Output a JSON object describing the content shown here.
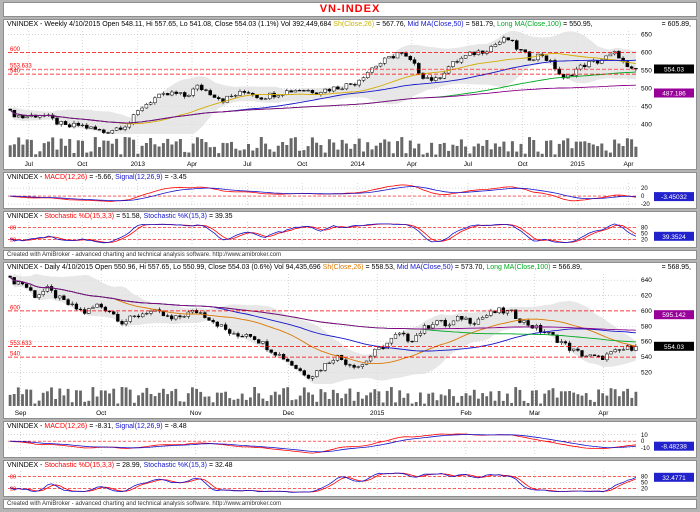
{
  "title": "VN-INDEX",
  "credit": "Created with AmiBroker - advanced charting and technical analysis software.  http://www.amibroker.com",
  "weekly": {
    "price_header": {
      "segments": [
        {
          "t": "VNINDEX - Weekly 4/10/2015 Open 548.11, Hi 557.65, Lo 541.08, Close 554.03 (1.1%) Vol 392,449,684 ",
          "c": "#000000"
        },
        {
          "t": "Sh(Close,26)",
          "c": "#c8b400"
        },
        {
          "t": " = 567.76, ",
          "c": "#000000"
        },
        {
          "t": "Mid MA(Close,50)",
          "c": "#1414cc"
        },
        {
          "t": " = 581.79, ",
          "c": "#000000"
        },
        {
          "t": "Long MA(Close,100)",
          "c": "#00aa22"
        },
        {
          "t": " = 550.95,",
          "c": "#000000"
        },
        {
          "t": "= 605.89,",
          "c": "#000000",
          "right": true
        }
      ]
    },
    "macd_header": {
      "segments": [
        {
          "t": "VNINDEX - ",
          "c": "#000000"
        },
        {
          "t": "MACD(12,26)",
          "c": "#ff0000"
        },
        {
          "t": " = -5.66, ",
          "c": "#000000"
        },
        {
          "t": "Signal(12,26,9)",
          "c": "#1414cc"
        },
        {
          "t": " = -3.45",
          "c": "#000000"
        }
      ]
    },
    "stoch_header": {
      "segments": [
        {
          "t": "VNINDEX - ",
          "c": "#000000"
        },
        {
          "t": "Stochastic %D(15,3,3)",
          "c": "#ff0000"
        },
        {
          "t": " = 51.58, ",
          "c": "#000000"
        },
        {
          "t": "Stochastic %K(15,3)",
          "c": "#1414cc"
        },
        {
          "t": " = 39.35",
          "c": "#000000"
        }
      ]
    }
  },
  "daily": {
    "price_header": {
      "segments": [
        {
          "t": "VNINDEX - Daily 4/10/2015 Open 550.96, Hi 557.65, Lo 550.99, Close 554.03 (0.6%) Vol 94,435,696 ",
          "c": "#000000"
        },
        {
          "t": "Sh(Close,26)",
          "c": "#dd7700"
        },
        {
          "t": " = 558.53, ",
          "c": "#000000"
        },
        {
          "t": "Mid MA(Close,50)",
          "c": "#1414cc"
        },
        {
          "t": " = 573.70, ",
          "c": "#000000"
        },
        {
          "t": "Long MA(Close,100)",
          "c": "#00aa22"
        },
        {
          "t": " = 566.89,",
          "c": "#000000"
        },
        {
          "t": "= 568.95,",
          "c": "#000000",
          "right": true
        }
      ]
    },
    "macd_header": {
      "segments": [
        {
          "t": "VNINDEX - ",
          "c": "#000000"
        },
        {
          "t": "MACD(12,26)",
          "c": "#ff0000"
        },
        {
          "t": " = -8.31, ",
          "c": "#000000"
        },
        {
          "t": "Signal(12,26,9)",
          "c": "#1414cc"
        },
        {
          "t": " = -8.48",
          "c": "#000000"
        }
      ]
    },
    "stoch_header": {
      "segments": [
        {
          "t": "VNINDEX - ",
          "c": "#000000"
        },
        {
          "t": "Stochastic %D(15,3,3)",
          "c": "#ff0000"
        },
        {
          "t": " = 28.99, ",
          "c": "#000000"
        },
        {
          "t": "Stochastic %K(15,3)",
          "c": "#1414cc"
        },
        {
          "t": " = 32.48",
          "c": "#000000"
        }
      ]
    }
  },
  "chart_data": [
    {
      "id": "weekly-price",
      "type": "candlestick",
      "timeframe": "Weekly",
      "as_of": "4/10/2015",
      "last": {
        "open": 548.11,
        "high": 557.65,
        "low": 541.08,
        "close": 554.03,
        "change_pct": "1.1%",
        "volume": "392,449,684"
      },
      "indicators": {
        "sh_close_26": 567.76,
        "mid_ma_close_50": 581.79,
        "long_ma_close_100": 550.95,
        "unlabeled": 605.89
      },
      "ylim": [
        373,
        660
      ],
      "yticks": [
        650,
        600,
        550,
        500,
        450,
        400
      ],
      "num_bars": 148,
      "close_trend": [
        [
          0,
          432
        ],
        [
          0.02,
          420
        ],
        [
          0.05,
          428
        ],
        [
          0.07,
          410
        ],
        [
          0.09,
          392
        ],
        [
          0.11,
          398
        ],
        [
          0.13,
          388
        ],
        [
          0.15,
          378
        ],
        [
          0.17,
          390
        ],
        [
          0.19,
          402
        ],
        [
          0.21,
          448
        ],
        [
          0.23,
          472
        ],
        [
          0.26,
          486
        ],
        [
          0.28,
          478
        ],
        [
          0.3,
          505
        ],
        [
          0.32,
          488
        ],
        [
          0.34,
          468
        ],
        [
          0.36,
          482
        ],
        [
          0.38,
          492
        ],
        [
          0.4,
          475
        ],
        [
          0.43,
          488
        ],
        [
          0.46,
          498
        ],
        [
          0.49,
          492
        ],
        [
          0.52,
          502
        ],
        [
          0.55,
          515
        ],
        [
          0.58,
          560
        ],
        [
          0.61,
          588
        ],
        [
          0.62,
          601
        ],
        [
          0.64,
          575
        ],
        [
          0.66,
          535
        ],
        [
          0.68,
          522
        ],
        [
          0.7,
          560
        ],
        [
          0.72,
          582
        ],
        [
          0.74,
          598
        ],
        [
          0.76,
          608
        ],
        [
          0.78,
          628
        ],
        [
          0.795,
          638
        ],
        [
          0.81,
          612
        ],
        [
          0.83,
          585
        ],
        [
          0.85,
          595
        ],
        [
          0.87,
          560
        ],
        [
          0.885,
          522
        ],
        [
          0.9,
          548
        ],
        [
          0.92,
          568
        ],
        [
          0.94,
          576
        ],
        [
          0.96,
          592
        ],
        [
          0.97,
          600
        ],
        [
          0.98,
          570
        ],
        [
          0.99,
          546
        ],
        [
          1,
          554.03
        ]
      ],
      "ma": [
        {
          "name": "Sh(Close,26)",
          "window": 26,
          "color": "#d4aa00"
        },
        {
          "name": "Mid MA(Close,50)",
          "window": 50,
          "color": "#1414cc"
        },
        {
          "name": "Long MA(Close,100)",
          "window": 100,
          "color": "#00aa22"
        },
        {
          "name": "MA(Close,200)",
          "window": 200,
          "color": "#8a008a"
        }
      ],
      "hlines": [
        {
          "v": 600,
          "label": "600"
        },
        {
          "v": 553.633,
          "label": "553.633"
        },
        {
          "v": 540,
          "label": "540"
        }
      ],
      "xlabels": [
        {
          "t": "Jul",
          "f": 0.033
        },
        {
          "t": "Oct",
          "f": 0.118
        },
        {
          "t": "2013",
          "f": 0.206
        },
        {
          "t": "Apr",
          "f": 0.292
        },
        {
          "t": "Jul",
          "f": 0.38
        },
        {
          "t": "Oct",
          "f": 0.467
        },
        {
          "t": "2014",
          "f": 0.555
        },
        {
          "t": "Apr",
          "f": 0.641
        },
        {
          "t": "Jul",
          "f": 0.73
        },
        {
          "t": "Oct",
          "f": 0.817
        },
        {
          "t": "2015",
          "f": 0.904
        },
        {
          "t": "Apr",
          "f": 0.985
        }
      ],
      "boxes": [
        {
          "label": "554.03",
          "bg": "#000000",
          "v": 554.03
        },
        {
          "label": "487.186",
          "bg": "#990099",
          "v": 487.186
        }
      ],
      "geom": {
        "plot_right": 634,
        "price_bottom": 105,
        "vol_bottom": 128,
        "xlabel_y": 137
      }
    },
    {
      "id": "weekly-macd",
      "type": "line",
      "source": "weekly-price",
      "derive": "macd",
      "params": [
        12,
        26,
        9
      ],
      "last": {
        "macd": -5.66,
        "signal": -3.45
      },
      "yticks": [
        20,
        0,
        -20
      ],
      "hlines": [
        {
          "v": 0
        }
      ],
      "vgrid": [
        0.033,
        0.118,
        0.206,
        0.292,
        0.38,
        0.467,
        0.555,
        0.641,
        0.73,
        0.817,
        0.904,
        0.985
      ],
      "box": {
        "label": "-3.45032",
        "bg": "#2222cc"
      },
      "geom": {
        "plot_right": 634
      }
    },
    {
      "id": "weekly-stoch",
      "type": "line",
      "source": "weekly-price",
      "derive": "stochastic",
      "params": [
        15,
        3,
        3
      ],
      "last": {
        "percent_d": 51.58,
        "percent_k": 39.35
      },
      "ylim": [
        -8,
        108
      ],
      "yticks": [
        80,
        50,
        20
      ],
      "hlines": [
        {
          "v": 80,
          "label": "80"
        },
        {
          "v": 20,
          "label": "20"
        }
      ],
      "vgrid": [
        0.033,
        0.118,
        0.206,
        0.292,
        0.38,
        0.467,
        0.555,
        0.641,
        0.73,
        0.817,
        0.904,
        0.985
      ],
      "box": {
        "label": "39.3524",
        "bg": "#2222cc"
      },
      "geom": {
        "plot_right": 634
      }
    },
    {
      "id": "daily-price",
      "type": "candlestick",
      "timeframe": "Daily",
      "as_of": "4/10/2015",
      "last": {
        "open": 550.96,
        "high": 557.65,
        "low": 550.99,
        "close": 554.03,
        "change_pct": "0.6%",
        "volume": "94,435,696"
      },
      "indicators": {
        "sh_close_26": 558.53,
        "mid_ma_close_50": 573.7,
        "long_ma_close_100": 566.89,
        "unlabeled": 568.95
      },
      "ylim": [
        505,
        648
      ],
      "yticks": [
        640,
        620,
        600,
        580,
        560,
        540,
        520
      ],
      "num_bars": 152,
      "close_trend": [
        [
          0,
          640
        ],
        [
          0.02,
          636
        ],
        [
          0.04,
          620
        ],
        [
          0.06,
          628
        ],
        [
          0.08,
          615
        ],
        [
          0.1,
          605
        ],
        [
          0.12,
          598
        ],
        [
          0.14,
          608
        ],
        [
          0.16,
          600
        ],
        [
          0.18,
          585
        ],
        [
          0.2,
          592
        ],
        [
          0.22,
          600
        ],
        [
          0.24,
          596
        ],
        [
          0.26,
          588
        ],
        [
          0.28,
          596
        ],
        [
          0.3,
          600
        ],
        [
          0.32,
          590
        ],
        [
          0.34,
          578
        ],
        [
          0.36,
          566
        ],
        [
          0.38,
          572
        ],
        [
          0.4,
          560
        ],
        [
          0.42,
          548
        ],
        [
          0.44,
          538
        ],
        [
          0.46,
          524
        ],
        [
          0.48,
          515
        ],
        [
          0.5,
          528
        ],
        [
          0.52,
          542
        ],
        [
          0.54,
          532
        ],
        [
          0.56,
          528
        ],
        [
          0.58,
          545
        ],
        [
          0.6,
          556
        ],
        [
          0.62,
          570
        ],
        [
          0.64,
          562
        ],
        [
          0.66,
          576
        ],
        [
          0.68,
          588
        ],
        [
          0.7,
          580
        ],
        [
          0.72,
          592
        ],
        [
          0.74,
          586
        ],
        [
          0.76,
          594
        ],
        [
          0.78,
          600
        ],
        [
          0.8,
          598
        ],
        [
          0.82,
          586
        ],
        [
          0.84,
          578
        ],
        [
          0.86,
          570
        ],
        [
          0.88,
          560
        ],
        [
          0.9,
          548
        ],
        [
          0.92,
          542
        ],
        [
          0.94,
          538
        ],
        [
          0.96,
          544
        ],
        [
          0.98,
          550
        ],
        [
          1,
          554.03
        ]
      ],
      "ma": [
        {
          "name": "Sh(Close,26)",
          "window": 26,
          "color": "#dd7700"
        },
        {
          "name": "Mid MA(Close,50)",
          "window": 50,
          "color": "#1414cc"
        },
        {
          "name": "Long MA(Close,100)",
          "window": 100,
          "color": "#00aa22"
        },
        {
          "name": "MA(Close,200)",
          "window": 200,
          "color": "#8a008a"
        }
      ],
      "hlines": [
        {
          "v": 600,
          "label": "600"
        },
        {
          "v": 553.633,
          "label": "553.633"
        },
        {
          "v": 540,
          "label": "540"
        }
      ],
      "xlabels": [
        {
          "t": "Sep",
          "f": 0.02
        },
        {
          "t": "Oct",
          "f": 0.148
        },
        {
          "t": "Nov",
          "f": 0.298
        },
        {
          "t": "Dec",
          "f": 0.445
        },
        {
          "t": "2015",
          "f": 0.586
        },
        {
          "t": "Feb",
          "f": 0.727
        },
        {
          "t": "Mar",
          "f": 0.836
        },
        {
          "t": "Apr",
          "f": 0.945
        }
      ],
      "boxes": [
        {
          "label": "554.03",
          "bg": "#000000",
          "v": 554.03
        },
        {
          "label": "595.142",
          "bg": "#990099",
          "v": 595.142
        }
      ],
      "geom": {
        "plot_right": 634,
        "price_bottom": 112,
        "vol_bottom": 134,
        "xlabel_y": 143
      }
    },
    {
      "id": "daily-macd",
      "type": "line",
      "source": "daily-price",
      "derive": "macd",
      "params": [
        12,
        26,
        9
      ],
      "last": {
        "macd": -8.31,
        "signal": -8.48
      },
      "yticks": [
        10,
        0,
        -10
      ],
      "hlines": [
        {
          "v": 0
        }
      ],
      "vgrid": [
        0.02,
        0.148,
        0.298,
        0.445,
        0.586,
        0.727,
        0.836,
        0.945
      ],
      "box": {
        "label": "-8.48238",
        "bg": "#2222cc"
      },
      "geom": {
        "plot_right": 634
      }
    },
    {
      "id": "daily-stoch",
      "type": "line",
      "source": "daily-price",
      "derive": "stochastic",
      "params": [
        15,
        3,
        3
      ],
      "last": {
        "percent_d": 28.99,
        "percent_k": 32.48
      },
      "ylim": [
        -8,
        108
      ],
      "yticks": [
        80,
        50,
        20
      ],
      "hlines": [
        {
          "v": 80,
          "label": "80"
        },
        {
          "v": 20,
          "label": "20"
        }
      ],
      "vgrid": [
        0.02,
        0.148,
        0.298,
        0.445,
        0.586,
        0.727,
        0.836,
        0.945
      ],
      "box": {
        "label": "32.4771",
        "bg": "#2222cc"
      },
      "geom": {
        "plot_right": 634
      }
    }
  ]
}
